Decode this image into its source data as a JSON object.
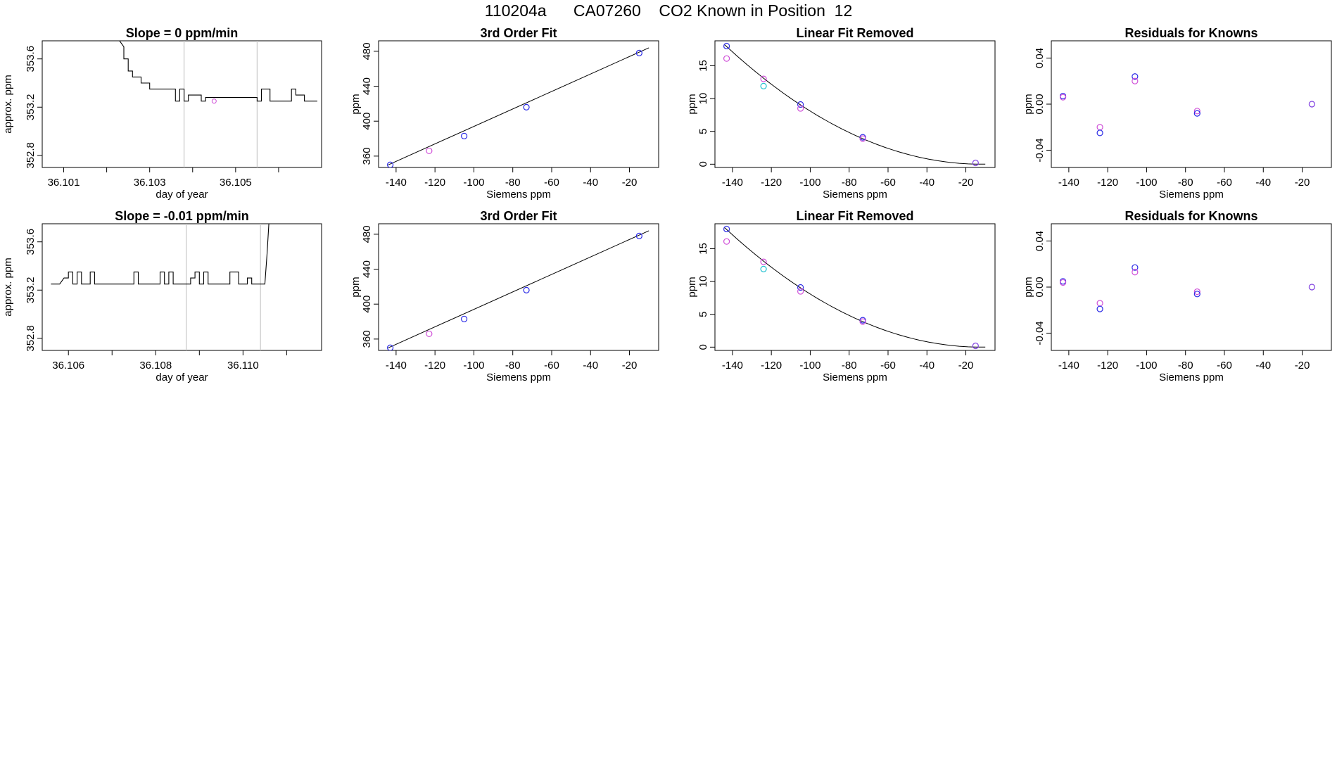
{
  "header": {
    "title": "110204a      CA07260    CO2 Known in Position  12"
  },
  "colors": {
    "line": "#000000",
    "axis": "#000000",
    "vline": "#c8c8c8",
    "blue": "#2a2ae6",
    "magenta": "#d050d8",
    "cyan": "#20c0d0",
    "purple": "#8040e0"
  },
  "chart_data": [
    {
      "type": "line",
      "panel": "row1-timeseries",
      "title": "Slope =  0  ppm/min",
      "xlabel": "day of year",
      "ylabel": "approx. ppm",
      "xlim": [
        36.1005,
        36.107
      ],
      "ylim": [
        352.7,
        353.75
      ],
      "xticks": [
        36.101,
        36.102,
        36.103,
        36.104,
        36.105,
        36.106
      ],
      "xtick_labels": [
        "36.101",
        "",
        "36.103",
        "",
        "36.105",
        ""
      ],
      "yticks": [
        352.8,
        353.2,
        353.6
      ],
      "ytick_labels": [
        "352.8",
        "353.2",
        "353.6"
      ],
      "vlines": [
        36.1038,
        36.1055
      ],
      "series": [
        {
          "x": [
            36.1022,
            36.1024,
            36.1024,
            36.1025,
            36.1025,
            36.1026,
            36.1026,
            36.1028,
            36.1028,
            36.103,
            36.103,
            36.1036,
            36.1036,
            36.1037,
            36.1037,
            36.1038,
            36.1038,
            36.1039,
            36.1039,
            36.1042,
            36.1042,
            36.1043,
            36.1043,
            36.1055,
            36.1055,
            36.1056,
            36.1056,
            36.1058,
            36.1058,
            36.1063,
            36.1063,
            36.1064,
            36.1064,
            36.1066,
            36.1066,
            36.1069
          ],
          "y": [
            353.8,
            353.7,
            353.6,
            353.6,
            353.5,
            353.5,
            353.45,
            353.45,
            353.4,
            353.4,
            353.35,
            353.35,
            353.25,
            353.25,
            353.35,
            353.35,
            353.25,
            353.25,
            353.3,
            353.3,
            353.25,
            353.25,
            353.28,
            353.28,
            353.25,
            353.25,
            353.35,
            353.35,
            353.25,
            353.25,
            353.35,
            353.35,
            353.3,
            353.3,
            353.25,
            353.25
          ]
        }
      ],
      "marker": {
        "x": 36.1045,
        "y": 353.25,
        "color": "magenta"
      }
    },
    {
      "type": "scatter",
      "panel": "row1-fit",
      "title": "3rd Order Fit",
      "xlabel": "Siemens ppm",
      "ylabel": "ppm",
      "xlim": [
        -149,
        -5
      ],
      "ylim": [
        347,
        492
      ],
      "xticks": [
        -140,
        -120,
        -100,
        -80,
        -60,
        -40,
        -20
      ],
      "yticks": [
        360,
        400,
        440,
        480
      ],
      "curve_x": [
        -144,
        -10
      ],
      "curve_y": [
        350,
        484
      ],
      "points": [
        {
          "x": -143,
          "y": 350,
          "color": "blue"
        },
        {
          "x": -123,
          "y": 366,
          "color": "magenta"
        },
        {
          "x": -105,
          "y": 383,
          "color": "blue"
        },
        {
          "x": -73,
          "y": 416,
          "color": "blue"
        },
        {
          "x": -15,
          "y": 478,
          "color": "blue"
        }
      ]
    },
    {
      "type": "scatter",
      "panel": "row1-linear-removed",
      "title": "Linear Fit Removed",
      "xlabel": "Siemens ppm",
      "ylabel": "ppm",
      "xlim": [
        -149,
        -5
      ],
      "ylim": [
        -0.5,
        18.8
      ],
      "xticks": [
        -140,
        -120,
        -100,
        -80,
        -60,
        -40,
        -20
      ],
      "yticks": [
        0,
        5,
        10,
        15
      ],
      "curve": {
        "x0": -144,
        "x1": -10,
        "y0": 18.2,
        "vertex": -12
      },
      "points": [
        {
          "x": -143,
          "y": 18.0,
          "color": "blue"
        },
        {
          "x": -143,
          "y": 16.1,
          "color": "magenta"
        },
        {
          "x": -124,
          "y": 13.0,
          "color": "magenta"
        },
        {
          "x": -124,
          "y": 11.9,
          "color": "cyan"
        },
        {
          "x": -105,
          "y": 9.1,
          "color": "blue"
        },
        {
          "x": -105,
          "y": 8.5,
          "color": "magenta"
        },
        {
          "x": -73,
          "y": 4.1,
          "color": "blue"
        },
        {
          "x": -73,
          "y": 3.9,
          "color": "magenta"
        },
        {
          "x": -15,
          "y": 0.2,
          "color": "purple"
        }
      ]
    },
    {
      "type": "scatter",
      "panel": "row1-residuals",
      "title": "Residuals for Knowns",
      "xlabel": "Siemens ppm",
      "ylabel": "ppm",
      "xlim": [
        -149,
        -5
      ],
      "ylim": [
        -0.055,
        0.055
      ],
      "xticks": [
        -140,
        -120,
        -100,
        -80,
        -60,
        -40,
        -20
      ],
      "yticks": [
        -0.04,
        0.0,
        0.04
      ],
      "ytick_labels": [
        "-0.04",
        "0.00",
        "0.04"
      ],
      "points": [
        {
          "x": -143,
          "y": 0.007,
          "color": "blue"
        },
        {
          "x": -143,
          "y": 0.006,
          "color": "magenta"
        },
        {
          "x": -124,
          "y": -0.02,
          "color": "magenta"
        },
        {
          "x": -124,
          "y": -0.025,
          "color": "blue"
        },
        {
          "x": -106,
          "y": 0.024,
          "color": "blue"
        },
        {
          "x": -106,
          "y": 0.02,
          "color": "magenta"
        },
        {
          "x": -74,
          "y": -0.006,
          "color": "magenta"
        },
        {
          "x": -74,
          "y": -0.008,
          "color": "blue"
        },
        {
          "x": -15,
          "y": 0.0,
          "color": "purple"
        }
      ]
    },
    {
      "type": "line",
      "panel": "row2-timeseries",
      "title": "Slope =  -0.01  ppm/min",
      "xlabel": "day of year",
      "ylabel": "approx. ppm",
      "xlim": [
        36.1054,
        36.1118
      ],
      "ylim": [
        352.7,
        353.75
      ],
      "xticks": [
        36.106,
        36.107,
        36.108,
        36.109,
        36.11,
        36.111
      ],
      "xtick_labels": [
        "36.106",
        "",
        "36.108",
        "",
        "36.110",
        ""
      ],
      "yticks": [
        352.8,
        353.2,
        353.6
      ],
      "ytick_labels": [
        "352.8",
        "353.2",
        "353.6"
      ],
      "vlines": [
        36.1087,
        36.1104
      ],
      "series": [
        {
          "x": [
            36.1056,
            36.1058,
            36.1059,
            36.106,
            36.106,
            36.1061,
            36.1061,
            36.1062,
            36.1062,
            36.1063,
            36.1063,
            36.1064,
            36.1064,
            36.1065,
            36.1065,
            36.1066,
            36.1066,
            36.1067,
            36.1067,
            36.1075,
            36.1075,
            36.1076,
            36.1076,
            36.1077,
            36.1077,
            36.1081,
            36.1081,
            36.1082,
            36.1082,
            36.1083,
            36.1083,
            36.1084,
            36.1084,
            36.1085,
            36.1085,
            36.1088,
            36.1088,
            36.1089,
            36.1089,
            36.109,
            36.109,
            36.1091,
            36.1091,
            36.1092,
            36.1092,
            36.1093,
            36.1093,
            36.1097,
            36.1097,
            36.1099,
            36.1099,
            36.1101,
            36.1101,
            36.1102,
            36.1102,
            36.1104,
            36.1104,
            36.1105,
            36.1105,
            36.11055,
            36.1106
          ],
          "y": [
            353.25,
            353.25,
            353.3,
            353.3,
            353.35,
            353.35,
            353.25,
            353.25,
            353.35,
            353.35,
            353.25,
            353.25,
            353.25,
            353.25,
            353.35,
            353.35,
            353.25,
            353.25,
            353.25,
            353.25,
            353.35,
            353.35,
            353.25,
            353.25,
            353.25,
            353.25,
            353.35,
            353.35,
            353.25,
            353.25,
            353.35,
            353.35,
            353.25,
            353.25,
            353.25,
            353.25,
            353.3,
            353.3,
            353.35,
            353.35,
            353.25,
            353.25,
            353.35,
            353.35,
            353.25,
            353.25,
            353.25,
            353.25,
            353.35,
            353.35,
            353.25,
            353.25,
            353.3,
            353.3,
            353.25,
            353.25,
            353.25,
            353.25,
            353.25,
            353.5,
            353.8
          ]
        }
      ]
    },
    {
      "type": "scatter",
      "panel": "row2-fit",
      "title": "3rd Order Fit",
      "xlabel": "Siemens ppm",
      "ylabel": "ppm",
      "xlim": [
        -149,
        -5
      ],
      "ylim": [
        347,
        492
      ],
      "xticks": [
        -140,
        -120,
        -100,
        -80,
        -60,
        -40,
        -20
      ],
      "yticks": [
        360,
        400,
        440,
        480
      ],
      "curve_x": [
        -144,
        -10
      ],
      "curve_y": [
        350,
        484
      ],
      "points": [
        {
          "x": -143,
          "y": 350,
          "color": "blue"
        },
        {
          "x": -123,
          "y": 366,
          "color": "magenta"
        },
        {
          "x": -105,
          "y": 383,
          "color": "blue"
        },
        {
          "x": -73,
          "y": 416,
          "color": "blue"
        },
        {
          "x": -15,
          "y": 478,
          "color": "blue"
        }
      ]
    },
    {
      "type": "scatter",
      "panel": "row2-linear-removed",
      "title": "Linear Fit Removed",
      "xlabel": "Siemens ppm",
      "ylabel": "ppm",
      "xlim": [
        -149,
        -5
      ],
      "ylim": [
        -0.5,
        18.8
      ],
      "xticks": [
        -140,
        -120,
        -100,
        -80,
        -60,
        -40,
        -20
      ],
      "yticks": [
        0,
        5,
        10,
        15
      ],
      "curve": {
        "x0": -144,
        "x1": -10,
        "y0": 18.2,
        "vertex": -12
      },
      "points": [
        {
          "x": -143,
          "y": 18.0,
          "color": "blue"
        },
        {
          "x": -143,
          "y": 16.1,
          "color": "magenta"
        },
        {
          "x": -124,
          "y": 13.0,
          "color": "magenta"
        },
        {
          "x": -124,
          "y": 11.9,
          "color": "cyan"
        },
        {
          "x": -105,
          "y": 9.1,
          "color": "blue"
        },
        {
          "x": -105,
          "y": 8.5,
          "color": "magenta"
        },
        {
          "x": -73,
          "y": 4.1,
          "color": "blue"
        },
        {
          "x": -73,
          "y": 3.9,
          "color": "magenta"
        },
        {
          "x": -15,
          "y": 0.2,
          "color": "purple"
        }
      ]
    },
    {
      "type": "scatter",
      "panel": "row2-residuals",
      "title": "Residuals for Knowns",
      "xlabel": "Siemens ppm",
      "ylabel": "ppm",
      "xlim": [
        -149,
        -5
      ],
      "ylim": [
        -0.055,
        0.055
      ],
      "xticks": [
        -140,
        -120,
        -100,
        -80,
        -60,
        -40,
        -20
      ],
      "yticks": [
        -0.04,
        0.0,
        0.04
      ],
      "ytick_labels": [
        "-0.04",
        "0.00",
        "0.04"
      ],
      "points": [
        {
          "x": -143,
          "y": 0.005,
          "color": "blue"
        },
        {
          "x": -143,
          "y": 0.004,
          "color": "magenta"
        },
        {
          "x": -124,
          "y": -0.014,
          "color": "magenta"
        },
        {
          "x": -124,
          "y": -0.019,
          "color": "blue"
        },
        {
          "x": -106,
          "y": 0.017,
          "color": "blue"
        },
        {
          "x": -106,
          "y": 0.013,
          "color": "magenta"
        },
        {
          "x": -74,
          "y": -0.004,
          "color": "magenta"
        },
        {
          "x": -74,
          "y": -0.006,
          "color": "blue"
        },
        {
          "x": -15,
          "y": 0.0,
          "color": "purple"
        }
      ]
    }
  ]
}
